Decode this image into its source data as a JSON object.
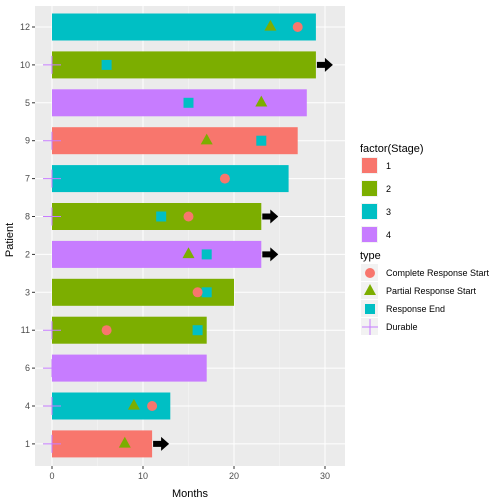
{
  "chart_data": {
    "type": "swimmer",
    "title": "",
    "xlabel": "Months",
    "ylabel": "Patient",
    "xlim": [
      -1.5,
      31.5
    ],
    "x_ticks": [
      0,
      10,
      20,
      30
    ],
    "grid": true,
    "legend_placement": "right",
    "patients": [
      {
        "id": "12",
        "months": 29,
        "stage": "3",
        "durable": false,
        "continuing": false,
        "complete_start": 27,
        "partial_start": 24,
        "response_end": null
      },
      {
        "id": "10",
        "months": 29,
        "stage": "2",
        "durable": true,
        "continuing": true,
        "complete_start": null,
        "partial_start": null,
        "response_end": 6
      },
      {
        "id": "5",
        "months": 28,
        "stage": "4",
        "durable": false,
        "continuing": false,
        "complete_start": null,
        "partial_start": 23,
        "response_end": 15
      },
      {
        "id": "9",
        "months": 27,
        "stage": "1",
        "durable": true,
        "continuing": false,
        "complete_start": null,
        "partial_start": 17,
        "response_end": 23
      },
      {
        "id": "7",
        "months": 26,
        "stage": "3",
        "durable": true,
        "continuing": false,
        "complete_start": 19,
        "partial_start": null,
        "response_end": null
      },
      {
        "id": "8",
        "months": 23,
        "stage": "2",
        "durable": true,
        "continuing": true,
        "complete_start": 15,
        "partial_start": null,
        "response_end": 12
      },
      {
        "id": "2",
        "months": 23,
        "stage": "4",
        "durable": false,
        "continuing": true,
        "complete_start": null,
        "partial_start": 15,
        "response_end": 17
      },
      {
        "id": "3",
        "months": 20,
        "stage": "2",
        "durable": false,
        "continuing": false,
        "complete_start": 16,
        "partial_start": null,
        "response_end": 17
      },
      {
        "id": "11",
        "months": 17,
        "stage": "2",
        "durable": true,
        "continuing": false,
        "complete_start": 6,
        "partial_start": null,
        "response_end": 16
      },
      {
        "id": "6",
        "months": 17,
        "stage": "4",
        "durable": true,
        "continuing": false,
        "complete_start": null,
        "partial_start": null,
        "response_end": null
      },
      {
        "id": "4",
        "months": 13,
        "stage": "3",
        "durable": true,
        "continuing": false,
        "complete_start": 11,
        "partial_start": 9,
        "response_end": null
      },
      {
        "id": "1",
        "months": 11,
        "stage": "1",
        "durable": true,
        "continuing": true,
        "complete_start": null,
        "partial_start": 8,
        "response_end": null
      }
    ],
    "legends": {
      "stage": {
        "title": "factor(Stage)",
        "items": [
          {
            "label": "1",
            "color": "#F8766D"
          },
          {
            "label": "2",
            "color": "#7CAE00"
          },
          {
            "label": "3",
            "color": "#00BFC4"
          },
          {
            "label": "4",
            "color": "#C77CFF"
          }
        ]
      },
      "type": {
        "title": "type",
        "items": [
          {
            "label": "Complete Response Start",
            "shape": "circle",
            "color": "#F8766D"
          },
          {
            "label": "Partial Response Start",
            "shape": "triangle",
            "color": "#7CAE00"
          },
          {
            "label": "Response End",
            "shape": "square",
            "color": "#00BFC4"
          },
          {
            "label": "Durable",
            "shape": "plus",
            "color": "#C77CFF"
          }
        ]
      }
    },
    "colors": {
      "panel_bg": "#EBEBEB",
      "grid_major": "#FFFFFF",
      "arrow": "#000000"
    }
  }
}
